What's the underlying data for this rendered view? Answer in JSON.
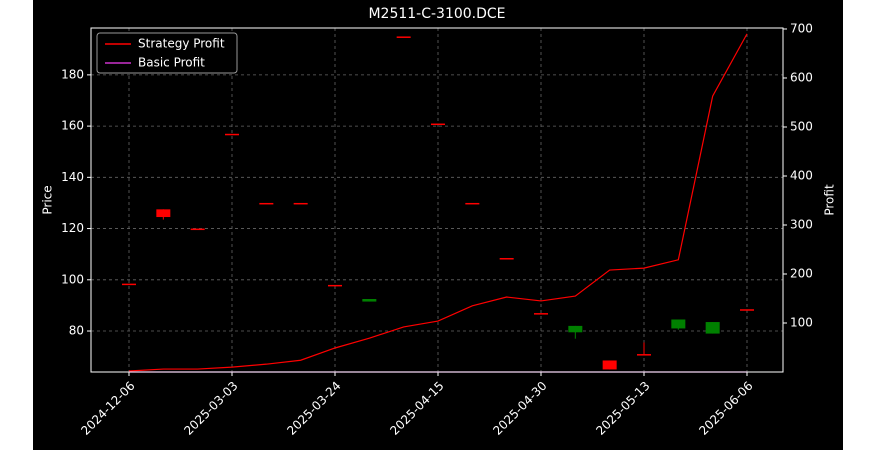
{
  "chart_data": {
    "type": "candlestick",
    "title": "M2511-C-3100.DCE",
    "y_label": "Price",
    "y2_label": "Profit",
    "categories": [
      "2024-12-06",
      null,
      null,
      "2025-03-03",
      null,
      null,
      "2025-03-24",
      null,
      null,
      "2025-04-15",
      null,
      null,
      "2025-04-30",
      null,
      null,
      "2025-05-13",
      null,
      null,
      "2025-06-06"
    ],
    "open": [
      98.5,
      124.5,
      120,
      157,
      130,
      130,
      98,
      92.5,
      195,
      161,
      130,
      108.5,
      87,
      82,
      65,
      71,
      84.5,
      83.5,
      88.5
    ],
    "high": [
      98.5,
      127.5,
      120,
      157,
      130,
      130,
      98,
      92.5,
      195,
      161,
      130,
      108.5,
      87,
      82,
      68.5,
      75.5,
      84.5,
      83.5,
      88.5
    ],
    "low": [
      98.5,
      123.5,
      120,
      157,
      130,
      130,
      98,
      91.5,
      195,
      161,
      130,
      108.5,
      87,
      77,
      65,
      71,
      80.5,
      79,
      88.5
    ],
    "close": [
      98.5,
      127.5,
      120,
      157,
      130,
      130,
      98,
      91.5,
      195,
      161,
      130,
      108.5,
      87,
      79.5,
      68.5,
      71,
      81,
      79,
      88.5
    ],
    "up_color": "#ff0000",
    "down_color": "#008000",
    "series": [
      {
        "name": "Strategy Profit",
        "color": "#ff0000",
        "axis": "y2",
        "values": [
          2,
          6,
          6,
          10,
          16,
          24,
          49,
          69,
          92,
          104,
          135,
          153,
          145,
          155,
          208,
          212,
          229,
          563,
          690
        ]
      },
      {
        "name": "Basic Profit",
        "color": "#cc33cc",
        "axis": "y2",
        "values": [
          0,
          0,
          0,
          0,
          0,
          0,
          0,
          0,
          0,
          0,
          0,
          0,
          0,
          0,
          0,
          0,
          0,
          0,
          0
        ]
      }
    ],
    "ylim": [
      64,
      198.3
    ],
    "yticks": [
      80,
      100,
      120,
      140,
      160,
      180
    ],
    "y2lim": [
      0,
      702
    ],
    "y2ticks": [
      100,
      200,
      300,
      400,
      500,
      600,
      700
    ],
    "grid": true,
    "legend": "upper-left"
  }
}
